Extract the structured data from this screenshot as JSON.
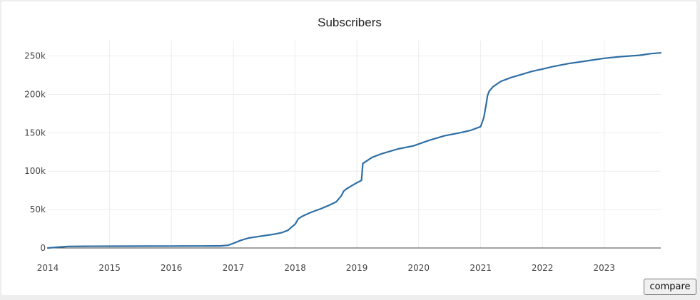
{
  "chart_data": {
    "type": "line",
    "title": "Subscribers",
    "xlabel": "",
    "ylabel": "",
    "x_tick_labels": [
      "2014",
      "2015",
      "2016",
      "2017",
      "2018",
      "2019",
      "2020",
      "2021",
      "2022",
      "2023"
    ],
    "y_tick_values": [
      0,
      50000,
      100000,
      150000,
      200000,
      250000
    ],
    "y_tick_labels": [
      "0",
      "50k",
      "100k",
      "150k",
      "200k",
      "250k"
    ],
    "xlim": [
      "2014-01-01",
      "2023-12-01"
    ],
    "ylim": [
      0,
      270000
    ],
    "grid": true,
    "legend": "none",
    "series": [
      {
        "color": "#2f6fa5",
        "x": [
          "2014-01-01",
          "2014-03-01",
          "2014-05-01",
          "2014-08-01",
          "2015-01-01",
          "2015-07-01",
          "2016-01-01",
          "2016-07-01",
          "2016-09-01",
          "2016-10-15",
          "2016-12-01",
          "2017-01-01",
          "2017-02-15",
          "2017-04-01",
          "2017-06-01",
          "2017-09-01",
          "2017-10-15",
          "2017-11-20",
          "2017-12-15",
          "2018-01-01",
          "2018-01-20",
          "2018-02-10",
          "2018-04-01",
          "2018-06-01",
          "2018-07-15",
          "2018-09-01",
          "2018-10-01",
          "2018-10-15",
          "2018-11-01",
          "2018-12-01",
          "2019-01-01",
          "2019-01-28",
          "2019-02-05",
          "2019-04-01",
          "2019-06-01",
          "2019-09-01",
          "2019-12-01",
          "2020-03-01",
          "2020-06-01",
          "2020-09-01",
          "2020-11-01",
          "2021-01-01",
          "2021-01-20",
          "2021-02-05",
          "2021-02-10",
          "2021-02-20",
          "2021-03-15",
          "2021-05-01",
          "2021-07-01",
          "2021-09-01",
          "2021-11-01",
          "2022-01-01",
          "2022-03-01",
          "2022-06-01",
          "2022-09-01",
          "2023-01-01",
          "2023-04-01",
          "2023-08-01",
          "2023-10-01",
          "2023-12-01"
        ],
        "y": [
          0,
          1000,
          2000,
          2200,
          2300,
          2400,
          2500,
          2600,
          2700,
          2700,
          3500,
          6000,
          10000,
          13000,
          15000,
          18000,
          20000,
          23000,
          28000,
          31000,
          38000,
          41000,
          46000,
          51000,
          55000,
          60000,
          68000,
          74000,
          77000,
          81000,
          85000,
          88000,
          110000,
          118000,
          123000,
          129000,
          133000,
          140000,
          146000,
          150000,
          153000,
          158000,
          170000,
          190000,
          198000,
          204000,
          210000,
          217000,
          222000,
          226000,
          230000,
          233000,
          236000,
          240000,
          243000,
          247000,
          249000,
          251000,
          253000,
          254000
        ]
      }
    ]
  },
  "ui": {
    "compare_label": "compare"
  }
}
